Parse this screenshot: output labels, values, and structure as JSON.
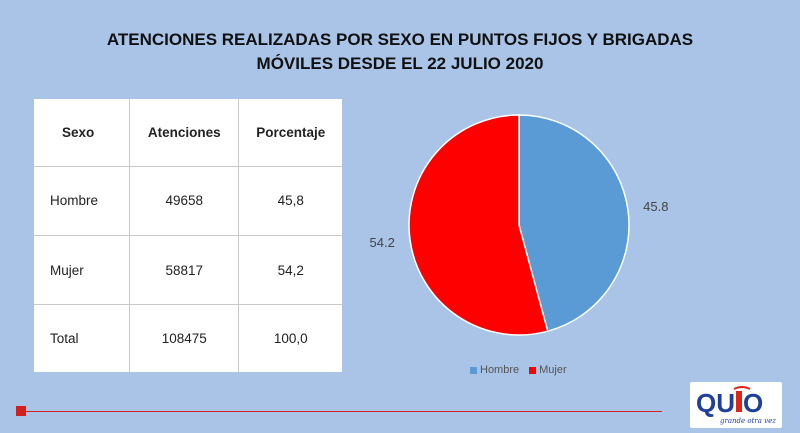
{
  "title": {
    "line1": "ATENCIONES REALIZADAS POR SEXO EN PUNTOS FIJOS Y BRIGADAS",
    "line2": "MÓVILES DESDE EL 22 JULIO 2020"
  },
  "table": {
    "headers": [
      "Sexo",
      "Atenciones",
      "Porcentaje"
    ],
    "rows": [
      [
        "Hombre",
        "49658",
        "45,8"
      ],
      [
        "Mujer",
        "58817",
        "54,2"
      ],
      [
        "Total",
        "108475",
        "100,0"
      ]
    ]
  },
  "chart_data": {
    "type": "pie",
    "categories": [
      "Hombre",
      "Mujer"
    ],
    "values": [
      45.8,
      54.2
    ],
    "data_labels": [
      "45.8",
      "54.2"
    ],
    "colors": [
      "#5b9bd5",
      "#ff0000"
    ],
    "legend": "bottom"
  },
  "logo": {
    "text": "QUITO",
    "tagline": "grande otra vez",
    "colors": {
      "blue": "#1f3f99",
      "red": "#e2231a"
    }
  }
}
